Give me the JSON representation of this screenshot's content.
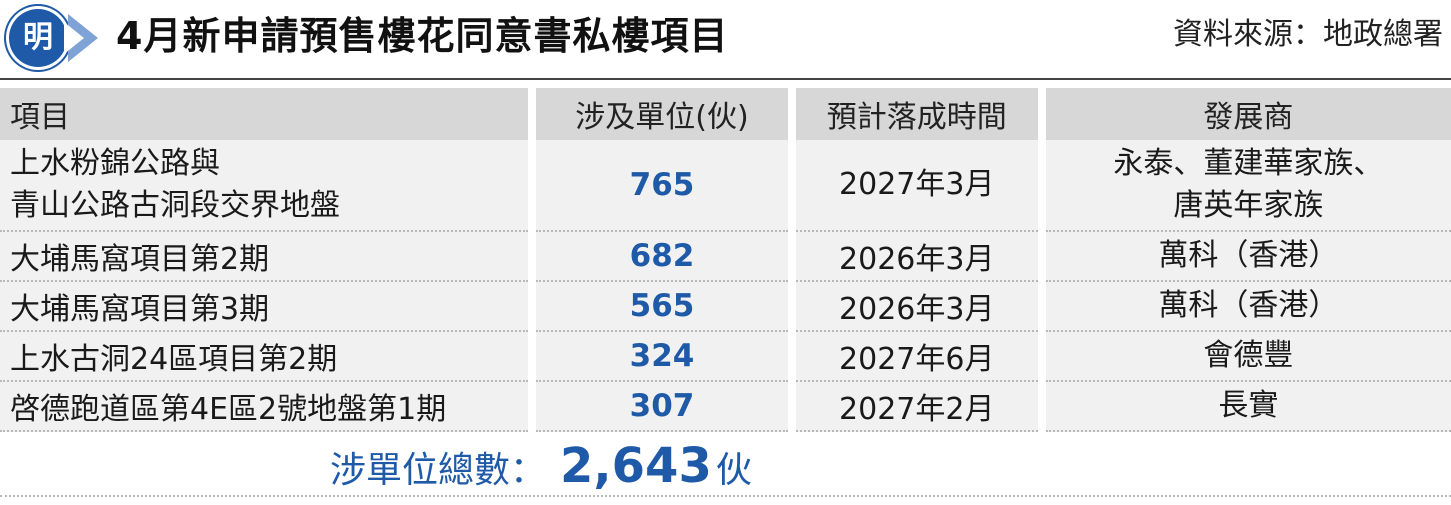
{
  "header": {
    "logo_char": "明",
    "title": "4月新申請預售樓花同意書私樓項目",
    "source": "資料來源：地政總署"
  },
  "table": {
    "columns": [
      "項目",
      "涉及單位(伙)",
      "預計落成時間",
      "發展商"
    ],
    "rows": [
      {
        "project_line1": "上水粉錦公路與",
        "project_line2": "青山公路古洞段交界地盤",
        "units": "765",
        "completion": "2027年3月",
        "developer_line1": "永泰、董建華家族、",
        "developer_line2": "唐英年家族"
      },
      {
        "project_line1": "大埔馬窩項目第2期",
        "project_line2": "",
        "units": "682",
        "completion": "2026年3月",
        "developer_line1": "萬科（香港）",
        "developer_line2": ""
      },
      {
        "project_line1": "大埔馬窩項目第3期",
        "project_line2": "",
        "units": "565",
        "completion": "2026年3月",
        "developer_line1": "萬科（香港）",
        "developer_line2": ""
      },
      {
        "project_line1": "上水古洞24區項目第2期",
        "project_line2": "",
        "units": "324",
        "completion": "2027年6月",
        "developer_line1": "會德豐",
        "developer_line2": ""
      },
      {
        "project_line1": "啓德跑道區第4E區2號地盤第1期",
        "project_line2": "",
        "units": "307",
        "completion": "2027年2月",
        "developer_line1": "長實",
        "developer_line2": ""
      }
    ]
  },
  "total": {
    "label": "涉單位總數：",
    "value": "2,643",
    "unit": "伙"
  },
  "colors": {
    "accent": "#1e5aa8",
    "header_bg": "#d7d7d7",
    "row_bg": "#f1f1f1"
  }
}
